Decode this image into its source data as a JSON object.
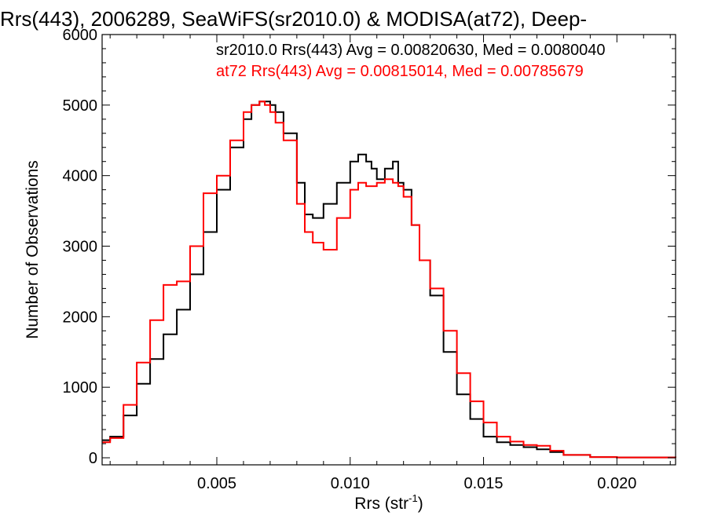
{
  "chart_data": {
    "type": "line",
    "title": "Rrs(443), 2006289, SeaWiFS(sr2010.0) & MODISA(at72), Deep-",
    "xlabel": "Rrs (str",
    "xlabel_sup": "-1",
    "xlabel_close": ")",
    "ylabel": "Number of Observations",
    "xlim": [
      0.0007,
      0.0222
    ],
    "ylim": [
      -100,
      6000
    ],
    "x_ticks": [
      0.005,
      0.01,
      0.015,
      0.02
    ],
    "x_tick_labels": [
      "0.005",
      "0.010",
      "0.015",
      "0.020"
    ],
    "y_ticks": [
      0,
      1000,
      2000,
      3000,
      4000,
      5000,
      6000
    ],
    "y_tick_labels": [
      "0",
      "1000",
      "2000",
      "3000",
      "4000",
      "5000",
      "6000"
    ],
    "grid": false,
    "legend_position": "top-right",
    "series": [
      {
        "name": "sr2010.0 Rrs(443) Avg = 0.00820630, Med = 0.0080040",
        "color": "#000000",
        "x": [
          0.0007,
          0.001,
          0.0015,
          0.002,
          0.0025,
          0.003,
          0.0035,
          0.004,
          0.0045,
          0.005,
          0.0055,
          0.006,
          0.0063,
          0.0066,
          0.0068,
          0.007,
          0.0072,
          0.0075,
          0.008,
          0.0083,
          0.0086,
          0.009,
          0.0095,
          0.01,
          0.0103,
          0.0106,
          0.0108,
          0.011,
          0.0113,
          0.0116,
          0.0118,
          0.012,
          0.0123,
          0.0126,
          0.013,
          0.0135,
          0.014,
          0.0145,
          0.015,
          0.0155,
          0.016,
          0.0165,
          0.017,
          0.0175,
          0.018,
          0.019,
          0.02,
          0.0222
        ],
        "y": [
          250,
          300,
          600,
          1050,
          1400,
          1750,
          2100,
          2600,
          3200,
          3800,
          4400,
          4800,
          5000,
          5050,
          5050,
          5000,
          4900,
          4600,
          3900,
          3450,
          3400,
          3600,
          3900,
          4200,
          4300,
          4200,
          4100,
          3950,
          4100,
          4200,
          3900,
          3800,
          3300,
          2800,
          2300,
          1500,
          900,
          550,
          300,
          220,
          180,
          150,
          120,
          80,
          40,
          10,
          5,
          0
        ]
      },
      {
        "name": "at72 Rrs(443) Avg = 0.00815014, Med = 0.00785679",
        "color": "#ff0000",
        "x": [
          0.0007,
          0.001,
          0.0015,
          0.002,
          0.0025,
          0.003,
          0.0035,
          0.004,
          0.0045,
          0.005,
          0.0055,
          0.006,
          0.0063,
          0.0066,
          0.0068,
          0.007,
          0.0072,
          0.0075,
          0.008,
          0.0083,
          0.0086,
          0.009,
          0.0095,
          0.01,
          0.0103,
          0.0106,
          0.0108,
          0.011,
          0.0113,
          0.0116,
          0.0118,
          0.012,
          0.0123,
          0.0126,
          0.013,
          0.0135,
          0.014,
          0.0145,
          0.015,
          0.0155,
          0.016,
          0.0165,
          0.017,
          0.0175,
          0.018,
          0.019,
          0.02,
          0.0222
        ],
        "y": [
          220,
          280,
          750,
          1350,
          1950,
          2450,
          2500,
          3000,
          3750,
          4000,
          4500,
          4900,
          5000,
          5050,
          5000,
          4900,
          4750,
          4500,
          3600,
          3200,
          3050,
          2950,
          3400,
          3800,
          3900,
          3850,
          3850,
          3900,
          3950,
          3900,
          3850,
          3700,
          3300,
          2800,
          2400,
          1800,
          1200,
          800,
          500,
          300,
          230,
          180,
          170,
          100,
          40,
          10,
          5,
          0
        ]
      }
    ]
  }
}
